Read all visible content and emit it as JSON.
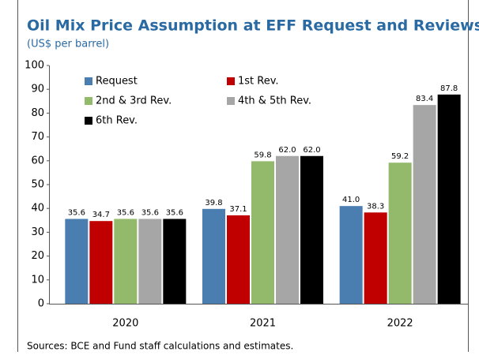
{
  "chart_data": {
    "type": "bar",
    "title": "Oil Mix Price Assumption at EFF Request and Reviews",
    "subtitle": "(US$ per barrel)",
    "source": "Sources: BCE and Fund staff calculations and estimates.",
    "categories": [
      "2020",
      "2021",
      "2022"
    ],
    "series": [
      {
        "name": "Request",
        "color": "#4a7eb0",
        "values": [
          35.6,
          39.8,
          41.0
        ],
        "value_labels": [
          "35.6",
          "39.8",
          "41.0"
        ]
      },
      {
        "name": "1st Rev.",
        "color": "#c00000",
        "values": [
          34.7,
          37.1,
          38.3
        ],
        "value_labels": [
          "34.7",
          "37.1",
          "38.3"
        ]
      },
      {
        "name": "2nd & 3rd Rev.",
        "color": "#93b96a",
        "values": [
          35.6,
          59.8,
          59.2
        ],
        "value_labels": [
          "35.6",
          "59.8",
          "59.2"
        ]
      },
      {
        "name": "4th & 5th Rev.",
        "color": "#a6a6a6",
        "values": [
          35.6,
          62.0,
          83.4
        ],
        "value_labels": [
          "35.6",
          "62.0",
          "83.4"
        ]
      },
      {
        "name": "6th Rev.",
        "color": "#000000",
        "values": [
          35.6,
          62.0,
          87.8
        ],
        "value_labels": [
          "35.6",
          "62.0",
          "87.8"
        ]
      }
    ],
    "ylim": [
      0,
      100
    ],
    "yticks": [
      0,
      10,
      20,
      30,
      40,
      50,
      60,
      70,
      80,
      90,
      100
    ],
    "grid": false,
    "legend": "upper left"
  }
}
